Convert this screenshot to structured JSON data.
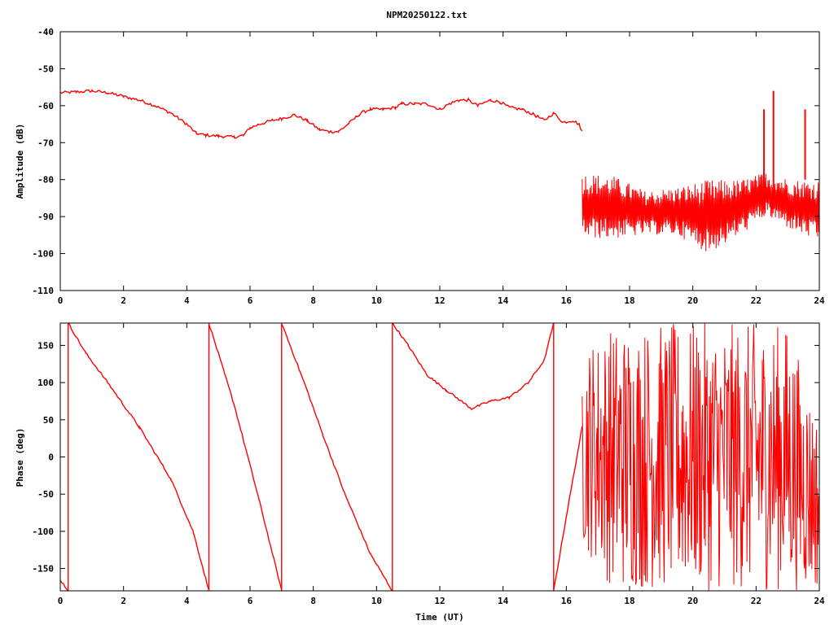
{
  "figure": {
    "title": "NPM20250122.txt"
  },
  "colors": {
    "series": "#ff0000",
    "axes": "#000000",
    "background": "#ffffff"
  },
  "chart_data": [
    {
      "type": "line",
      "title": "NPM20250122.txt",
      "xlabel": "",
      "ylabel": "Amplitude (dB)",
      "xlim": [
        0,
        24
      ],
      "ylim": [
        -110,
        -40
      ],
      "xticks": [
        0,
        2,
        4,
        6,
        8,
        10,
        12,
        14,
        16,
        18,
        20,
        22,
        24
      ],
      "yticks": [
        -110,
        -100,
        -90,
        -80,
        -70,
        -60,
        -50,
        -40
      ],
      "grid": false,
      "series": [
        {
          "x": [
            0,
            0.5,
            1,
            1.5,
            2,
            2.5,
            3,
            3.5,
            4,
            4.3,
            4.6,
            5,
            5.5,
            5.8,
            6,
            6.3,
            6.7,
            7,
            7.4,
            7.8,
            8.2,
            8.5,
            8.8,
            9.1,
            9.5,
            9.8,
            10.2,
            10.6,
            10.8,
            11.2,
            11.6,
            12,
            12.3,
            12.6,
            12.9,
            13.2,
            13.6,
            13.9,
            14.2,
            14.6,
            15,
            15.3,
            15.6,
            15.9,
            16.2,
            16.4,
            16.5
          ],
          "values": [
            -56.5,
            -56.3,
            -56,
            -56.5,
            -57.5,
            -58.5,
            -60,
            -62,
            -65,
            -67.5,
            -68,
            -68.2,
            -68.5,
            -68,
            -66,
            -65,
            -64,
            -63.5,
            -62.5,
            -64,
            -66.5,
            -67,
            -67,
            -65,
            -62,
            -61,
            -61,
            -60.5,
            -59.5,
            -59.5,
            -59.5,
            -61,
            -59.5,
            -58.5,
            -58.5,
            -60,
            -58.5,
            -59,
            -60.5,
            -61,
            -62.5,
            -64,
            -62,
            -64.5,
            -64,
            -65,
            -67
          ]
        }
      ],
      "noise_band": [
        {
          "x": 16.5,
          "low": -96,
          "high": -78
        },
        {
          "x": 17.5,
          "low": -96,
          "high": -79
        },
        {
          "x": 18.5,
          "low": -95,
          "high": -83
        },
        {
          "x": 19.5,
          "low": -95,
          "high": -82
        },
        {
          "x": 20.5,
          "low": -100,
          "high": -80
        },
        {
          "x": 21.5,
          "low": -95,
          "high": -80
        },
        {
          "x": 22.3,
          "low": -90,
          "high": -78
        },
        {
          "x": 23.2,
          "low": -94,
          "high": -80
        },
        {
          "x": 24,
          "low": -97,
          "high": -80
        }
      ],
      "spikes": [
        {
          "x": 22.25,
          "values": [
            -88,
            -61
          ]
        },
        {
          "x": 22.55,
          "values": [
            -88,
            -56
          ]
        },
        {
          "x": 23.55,
          "values": [
            -80,
            -61
          ]
        }
      ]
    },
    {
      "type": "line",
      "title": "",
      "xlabel": "Time (UT)",
      "ylabel": "Phase (deg)",
      "xlim": [
        0,
        24
      ],
      "ylim": [
        -180,
        180
      ],
      "xticks": [
        0,
        2,
        4,
        6,
        8,
        10,
        12,
        14,
        16,
        18,
        20,
        22,
        24
      ],
      "yticks": [
        -150,
        -100,
        -50,
        0,
        50,
        100,
        150
      ],
      "grid": false,
      "series": [
        {
          "x": [
            0,
            0.25
          ],
          "values": [
            -165,
            -180
          ]
        },
        {
          "x": [
            0.25,
            0.25
          ],
          "values": [
            -180,
            180
          ]
        },
        {
          "x": [
            0.25,
            0.8,
            1.5,
            2.5,
            3.5,
            4.2,
            4.7
          ],
          "values": [
            180,
            140,
            100,
            40,
            -30,
            -100,
            -180
          ]
        },
        {
          "x": [
            4.7,
            4.7
          ],
          "values": [
            -180,
            180
          ]
        },
        {
          "x": [
            4.7,
            5.5,
            6.3,
            7.0
          ],
          "values": [
            180,
            70,
            -60,
            -180
          ]
        },
        {
          "x": [
            7.0,
            7.0
          ],
          "values": [
            -180,
            180
          ]
        },
        {
          "x": [
            7.0,
            7.8,
            8.3,
            9.0,
            9.8,
            10.5
          ],
          "values": [
            180,
            90,
            30,
            -50,
            -130,
            -180
          ]
        },
        {
          "x": [
            10.5,
            10.5
          ],
          "values": [
            -180,
            180
          ]
        },
        {
          "x": [
            10.5,
            11.0,
            11.6,
            12.2,
            13.0,
            13.6,
            14.2,
            14.8,
            15.3,
            15.6
          ],
          "values": [
            180,
            150,
            110,
            90,
            65,
            75,
            80,
            100,
            130,
            180
          ]
        },
        {
          "x": [
            15.6,
            15.6
          ],
          "values": [
            180,
            -180
          ]
        },
        {
          "x": [
            15.6,
            16.0,
            16.5
          ],
          "values": [
            -180,
            -80,
            40
          ]
        }
      ],
      "noise_band": [
        {
          "x": 16.5,
          "low": -120,
          "high": 150
        },
        {
          "x": 17.5,
          "low": -180,
          "high": 180
        },
        {
          "x": 19.0,
          "low": -180,
          "high": 180
        },
        {
          "x": 20.5,
          "low": -180,
          "high": 180
        },
        {
          "x": 22.0,
          "low": -180,
          "high": 180
        },
        {
          "x": 23.0,
          "low": -180,
          "high": 180
        },
        {
          "x": 24,
          "low": -180,
          "high": 50
        }
      ]
    }
  ]
}
